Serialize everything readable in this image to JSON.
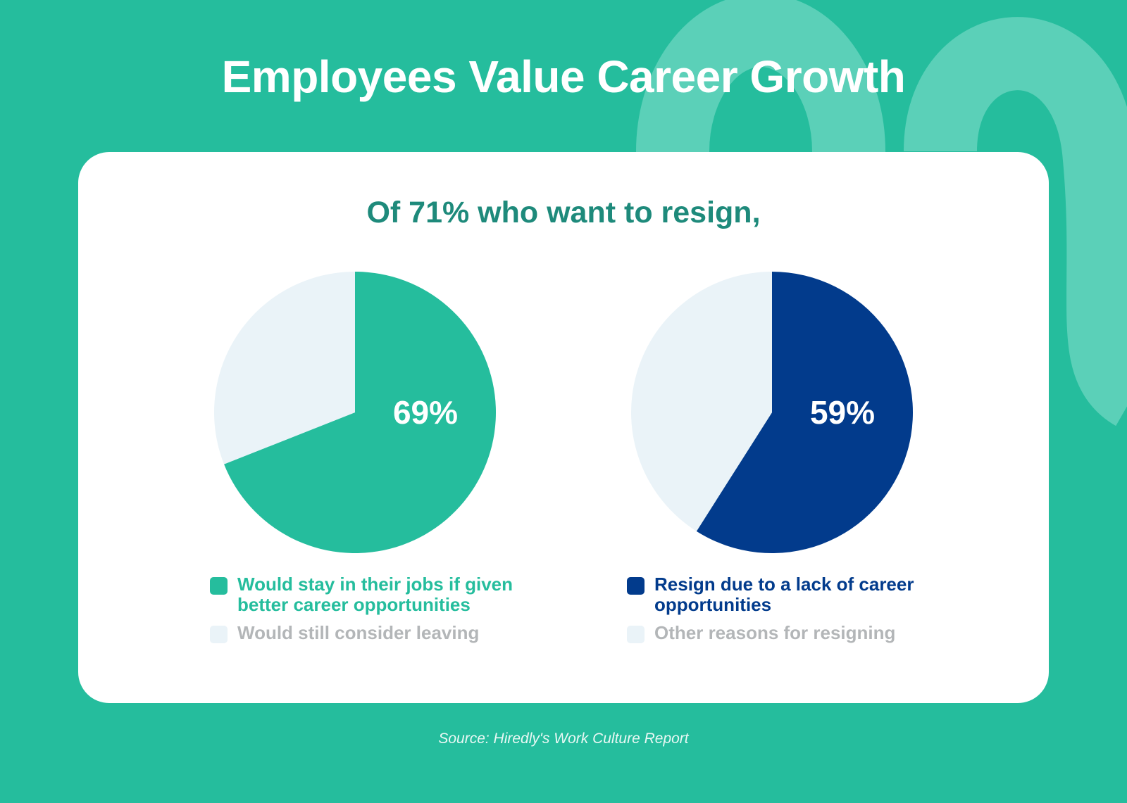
{
  "title": "Employees Value Career Growth",
  "subtitle": "Of 71% who want to resign,",
  "source": "Source: Hiredly's Work Culture Report",
  "colors": {
    "background": "#25bd9d",
    "teal": "#25bd9d",
    "navy": "#023b8c",
    "light": "#eaf3f8",
    "muted_text": "#b3b6b8"
  },
  "chart_data": [
    {
      "type": "pie",
      "center_label": "69%",
      "slices": [
        {
          "label": "Would stay in their jobs if given better career opportunities",
          "value": 69,
          "color": "#25bd9d"
        },
        {
          "label": "Would still consider leaving",
          "value": 31,
          "color": "#eaf3f8"
        }
      ]
    },
    {
      "type": "pie",
      "center_label": "59%",
      "slices": [
        {
          "label": "Resign due to a lack of career opportunities",
          "value": 59,
          "color": "#023b8c"
        },
        {
          "label": "Other reasons for resigning",
          "value": 41,
          "color": "#eaf3f8"
        }
      ]
    }
  ]
}
